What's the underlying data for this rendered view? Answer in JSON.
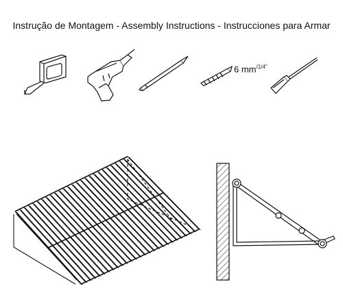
{
  "title": "Instrução de Montagem - Assembly Instructions - Instrucciones para Armar",
  "tools": [
    {
      "icon": "tape-measure-icon"
    },
    {
      "icon": "power-drill-icon"
    },
    {
      "icon": "pencil-icon"
    },
    {
      "icon": "drill-bit-icon",
      "label": "6 mm",
      "label_fraction": "/1/4\""
    },
    {
      "icon": "screwdriver-icon"
    }
  ],
  "diagrams": [
    {
      "icon": "wire-shelf-icon"
    },
    {
      "icon": "wall-bracket-side-view-icon"
    }
  ]
}
